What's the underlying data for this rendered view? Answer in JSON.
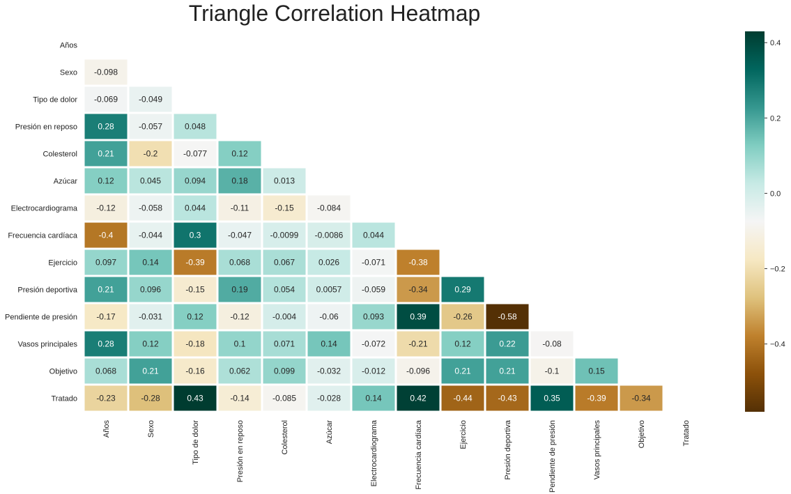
{
  "chart_data": {
    "type": "heatmap",
    "title": "Triangle Correlation Heatmap",
    "labels": [
      "Años",
      "Sexo",
      "Tipo de dolor",
      "Presión en reposo",
      "Colesterol",
      "Azúcar",
      "Electrocardiograma",
      "Frecuencia cardíaca",
      "Ejercicio",
      "Presión deportiva",
      "Pendiente de presión",
      "Vasos principales",
      "Objetivo",
      "Tratado"
    ],
    "values": [
      [],
      [
        -0.098
      ],
      [
        -0.069,
        -0.049
      ],
      [
        0.28,
        -0.057,
        0.048
      ],
      [
        0.21,
        -0.2,
        -0.077,
        0.12
      ],
      [
        0.12,
        0.045,
        0.094,
        0.18,
        0.013
      ],
      [
        -0.12,
        -0.058,
        0.044,
        -0.11,
        -0.15,
        -0.084
      ],
      [
        -0.4,
        -0.044,
        0.3,
        -0.047,
        -0.0099,
        -0.0086,
        0.044
      ],
      [
        0.097,
        0.14,
        -0.39,
        0.068,
        0.067,
        0.026,
        -0.071,
        -0.38
      ],
      [
        0.21,
        0.096,
        -0.15,
        0.19,
        0.054,
        0.0057,
        -0.059,
        -0.34,
        0.29
      ],
      [
        -0.17,
        -0.031,
        0.12,
        -0.12,
        -0.004,
        -0.06,
        0.093,
        0.39,
        -0.26,
        -0.58
      ],
      [
        0.28,
        0.12,
        -0.18,
        0.1,
        0.071,
        0.14,
        -0.072,
        -0.21,
        0.12,
        0.22,
        -0.08
      ],
      [
        0.068,
        0.21,
        -0.16,
        0.062,
        0.099,
        -0.032,
        -0.012,
        -0.096,
        0.21,
        0.21,
        -0.1,
        0.15
      ],
      [
        -0.23,
        -0.28,
        0.43,
        -0.14,
        -0.085,
        -0.028,
        0.14,
        0.42,
        -0.44,
        -0.43,
        0.35,
        -0.39,
        -0.34
      ]
    ],
    "colormap": "BrBG",
    "vmin": -0.58,
    "vmax": 0.43,
    "colorbar_ticks": [
      0.4,
      0.2,
      0.0,
      -0.2,
      -0.4
    ],
    "colorbar_tick_labels": [
      "0.4",
      "0.2",
      "0.0",
      "−0.2",
      "−0.4"
    ],
    "mask": "upper-triangle-including-diagonal"
  }
}
